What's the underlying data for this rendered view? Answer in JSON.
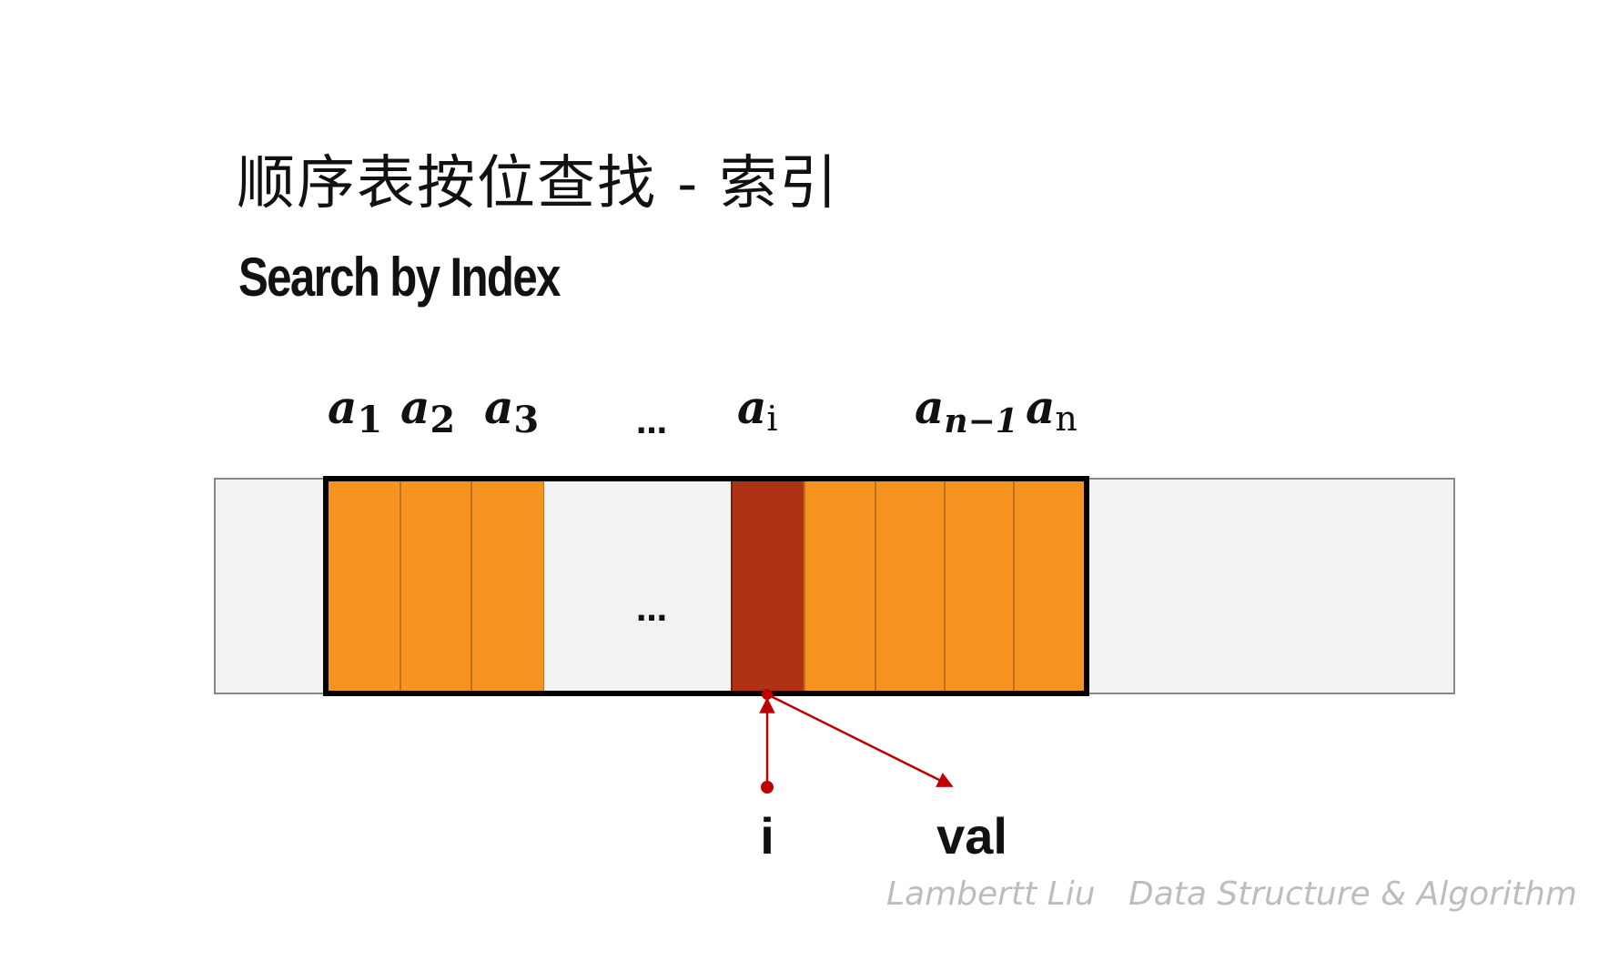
{
  "title_cn": "顺序表按位查找 - 索引",
  "title_en": "Search by Index",
  "element_labels": [
    {
      "base": "a",
      "sub": "1"
    },
    {
      "base": "a",
      "sub": "2"
    },
    {
      "base": "a",
      "sub": "3"
    },
    {
      "base": "",
      "sub": "…"
    },
    {
      "base": "a",
      "sub": "i"
    },
    {
      "base": "a",
      "sub": "n−1"
    },
    {
      "base": "a",
      "sub": "n"
    }
  ],
  "cell_ellipsis": "…",
  "pointer_index_label": "i",
  "pointer_value_label": "val",
  "watermark": {
    "author": "Lambertt Liu",
    "course": "Data Structure & Algorithm"
  },
  "colors": {
    "filled_cell": "#F7941F",
    "selected_cell": "#B03214",
    "empty_cell": "#F2F2F2",
    "frame": "#000000",
    "outer_frame": "#888888",
    "pointer": "#C00000"
  }
}
